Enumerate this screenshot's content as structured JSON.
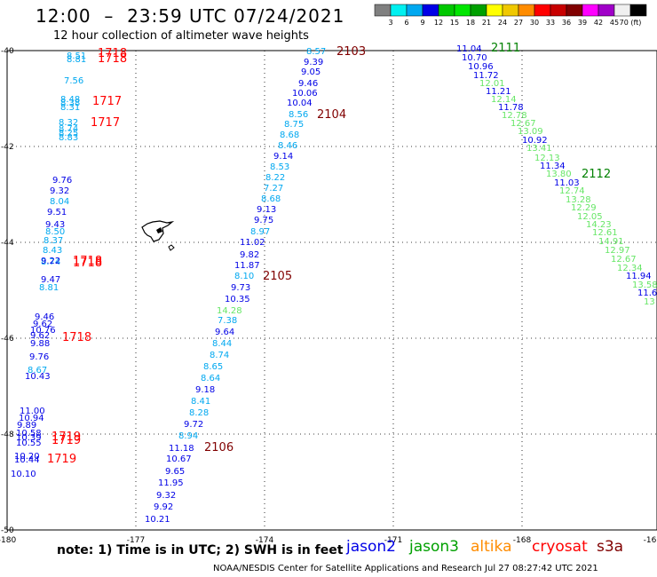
{
  "header": {
    "title": "12:00  –  23:59 UTC 07/24/2021",
    "subtitle": "12 hour collection of altimeter wave heights"
  },
  "legend": {
    "labels": [
      "3",
      "6",
      "9",
      "12",
      "15",
      "18",
      "21",
      "24",
      "27",
      "30",
      "33",
      "36",
      "39",
      "42",
      "45",
      "70 (ft)"
    ],
    "colors": [
      "#808080",
      "#00f0f0",
      "#00a8f0",
      "#0000e6",
      "#00c800",
      "#00e600",
      "#00a000",
      "#ffff00",
      "#f0c800",
      "#ff8c00",
      "#ff0000",
      "#c80000",
      "#800000",
      "#ff00ff",
      "#a000c8",
      "#f0f0f0",
      "#000000"
    ]
  },
  "axes": {
    "lon_ticks": [
      "-180",
      "-177",
      "-174",
      "-171",
      "-168",
      "-16"
    ],
    "lat_ticks": [
      "-40",
      "-42",
      "-44",
      "-46",
      "-48",
      "-50"
    ]
  },
  "observations": [
    {
      "t": "8.51",
      "c": "#00a8f0"
    },
    {
      "t": "8.81",
      "c": "#00a8f0"
    },
    {
      "t": "7.56",
      "c": "#00a8f0"
    },
    {
      "t": "8.48",
      "c": "#00a8f0"
    },
    {
      "t": "8.38",
      "c": "#00a8f0"
    },
    {
      "t": "8.31",
      "c": "#00a8f0"
    },
    {
      "t": "8.32",
      "c": "#00a8f0"
    },
    {
      "t": "8.74",
      "c": "#00a8f0"
    },
    {
      "t": "8.25",
      "c": "#00a8f0"
    },
    {
      "t": "8.83",
      "c": "#00a8f0"
    },
    {
      "t": "9.76",
      "c": "#0000e6"
    },
    {
      "t": "9.32",
      "c": "#0000e6"
    },
    {
      "t": "8.04",
      "c": "#00a8f0"
    },
    {
      "t": "9.51",
      "c": "#0000e6"
    },
    {
      "t": "9.43",
      "c": "#0000e6"
    },
    {
      "t": "8.50",
      "c": "#00a8f0"
    },
    {
      "t": "8.37",
      "c": "#00a8f0"
    },
    {
      "t": "8.43",
      "c": "#00a8f0"
    },
    {
      "t": "8.74",
      "c": "#00a8f0"
    },
    {
      "t": "9.22",
      "c": "#0000e6"
    },
    {
      "t": "9.47",
      "c": "#0000e6"
    },
    {
      "t": "8.81",
      "c": "#00a8f0"
    },
    {
      "t": "9.46",
      "c": "#0000e6"
    },
    {
      "t": "9.62",
      "c": "#0000e6"
    },
    {
      "t": "10.76",
      "c": "#0000e6"
    },
    {
      "t": "9.62",
      "c": "#0000e6"
    },
    {
      "t": "9.88",
      "c": "#0000e6"
    },
    {
      "t": "9.76",
      "c": "#0000e6"
    },
    {
      "t": "8.67",
      "c": "#00a8f0"
    },
    {
      "t": "10.43",
      "c": "#0000e6"
    },
    {
      "t": "11.00",
      "c": "#0000e6"
    },
    {
      "t": "10.94",
      "c": "#0000e6"
    },
    {
      "t": "9.89",
      "c": "#0000e6"
    },
    {
      "t": "10.58",
      "c": "#0000e6"
    },
    {
      "t": "10.39",
      "c": "#0000e6"
    },
    {
      "t": "10.55",
      "c": "#0000e6"
    },
    {
      "t": "10.20",
      "c": "#0000e6"
    },
    {
      "t": "10.44",
      "c": "#0000e6"
    },
    {
      "t": "10.10",
      "c": "#0000e6"
    },
    {
      "t": "8.57",
      "c": "#00a8f0"
    },
    {
      "t": "9.39",
      "c": "#0000e6"
    },
    {
      "t": "9.05",
      "c": "#0000e6"
    },
    {
      "t": "9.46",
      "c": "#0000e6"
    },
    {
      "t": "10.06",
      "c": "#0000e6"
    },
    {
      "t": "10.04",
      "c": "#0000e6"
    },
    {
      "t": "8.56",
      "c": "#00a8f0"
    },
    {
      "t": "8.75",
      "c": "#00a8f0"
    },
    {
      "t": "8.68",
      "c": "#00a8f0"
    },
    {
      "t": "8.46",
      "c": "#00a8f0"
    },
    {
      "t": "9.14",
      "c": "#0000e6"
    },
    {
      "t": "8.53",
      "c": "#00a8f0"
    },
    {
      "t": "8.22",
      "c": "#00a8f0"
    },
    {
      "t": "7.27",
      "c": "#00a8f0"
    },
    {
      "t": "8.68",
      "c": "#00a8f0"
    },
    {
      "t": "9.13",
      "c": "#0000e6"
    },
    {
      "t": "9.75",
      "c": "#0000e6"
    },
    {
      "t": "8.97",
      "c": "#00a8f0"
    },
    {
      "t": "11.02",
      "c": "#0000e6"
    },
    {
      "t": "9.82",
      "c": "#0000e6"
    },
    {
      "t": "11.87",
      "c": "#0000e6"
    },
    {
      "t": "8.10",
      "c": "#00a8f0"
    },
    {
      "t": "9.73",
      "c": "#0000e6"
    },
    {
      "t": "10.35",
      "c": "#0000e6"
    },
    {
      "t": "14.28",
      "c": "#66e666"
    },
    {
      "t": "7.38",
      "c": "#00a8f0"
    },
    {
      "t": "9.64",
      "c": "#0000e6"
    },
    {
      "t": "8.44",
      "c": "#00a8f0"
    },
    {
      "t": "8.74",
      "c": "#00a8f0"
    },
    {
      "t": "8.65",
      "c": "#00a8f0"
    },
    {
      "t": "8.64",
      "c": "#00a8f0"
    },
    {
      "t": "9.18",
      "c": "#0000e6"
    },
    {
      "t": "8.41",
      "c": "#00a8f0"
    },
    {
      "t": "8.28",
      "c": "#00a8f0"
    },
    {
      "t": "9.72",
      "c": "#0000e6"
    },
    {
      "t": "8.94",
      "c": "#00a8f0"
    },
    {
      "t": "11.18",
      "c": "#0000e6"
    },
    {
      "t": "10.67",
      "c": "#0000e6"
    },
    {
      "t": "9.65",
      "c": "#0000e6"
    },
    {
      "t": "11.95",
      "c": "#0000e6"
    },
    {
      "t": "9.32",
      "c": "#0000e6"
    },
    {
      "t": "9.92",
      "c": "#0000e6"
    },
    {
      "t": "10.21",
      "c": "#0000e6"
    },
    {
      "t": "11.04",
      "c": "#0000e6"
    },
    {
      "t": "10.70",
      "c": "#0000e6"
    },
    {
      "t": "10.96",
      "c": "#0000e6"
    },
    {
      "t": "11.72",
      "c": "#0000e6"
    },
    {
      "t": "12.01",
      "c": "#66e666"
    },
    {
      "t": "11.21",
      "c": "#0000e6"
    },
    {
      "t": "12.14",
      "c": "#66e666"
    },
    {
      "t": "11.78",
      "c": "#0000e6"
    },
    {
      "t": "12.78",
      "c": "#66e666"
    },
    {
      "t": "12.67",
      "c": "#66e666"
    },
    {
      "t": "13.09",
      "c": "#66e666"
    },
    {
      "t": "10.92",
      "c": "#0000e6"
    },
    {
      "t": "13.41",
      "c": "#66e666"
    },
    {
      "t": "12.13",
      "c": "#66e666"
    },
    {
      "t": "11.34",
      "c": "#0000e6"
    },
    {
      "t": "13.80",
      "c": "#66e666"
    },
    {
      "t": "11.03",
      "c": "#0000e6"
    },
    {
      "t": "12.74",
      "c": "#66e666"
    },
    {
      "t": "13.28",
      "c": "#66e666"
    },
    {
      "t": "12.29",
      "c": "#66e666"
    },
    {
      "t": "12.05",
      "c": "#66e666"
    },
    {
      "t": "14.23",
      "c": "#66e666"
    },
    {
      "t": "12.61",
      "c": "#66e666"
    },
    {
      "t": "14.91",
      "c": "#66e666"
    },
    {
      "t": "12.97",
      "c": "#66e666"
    },
    {
      "t": "12.67",
      "c": "#66e666"
    },
    {
      "t": "12.34",
      "c": "#66e666"
    },
    {
      "t": "11.94",
      "c": "#0000e6"
    },
    {
      "t": "13.58",
      "c": "#66e666"
    },
    {
      "t": "11.6",
      "c": "#0000e6"
    },
    {
      "t": "13",
      "c": "#66e666"
    }
  ],
  "time_labels": [
    {
      "t": "1718",
      "c": "#ff0000"
    },
    {
      "t": "1718",
      "c": "#ff0000"
    },
    {
      "t": "1717",
      "c": "#ff0000"
    },
    {
      "t": "1717",
      "c": "#ff0000"
    },
    {
      "t": "1718",
      "c": "#ff0000"
    },
    {
      "t": "1718",
      "c": "#ff0000"
    },
    {
      "t": "1718",
      "c": "#ff0000"
    },
    {
      "t": "1719",
      "c": "#ff0000"
    },
    {
      "t": "1719",
      "c": "#ff0000"
    },
    {
      "t": "1719",
      "c": "#ff0000"
    },
    {
      "t": "2103",
      "c": "#800000"
    },
    {
      "t": "2104",
      "c": "#800000"
    },
    {
      "t": "2105",
      "c": "#800000"
    },
    {
      "t": "2106",
      "c": "#800000"
    },
    {
      "t": "2111",
      "c": "#008000"
    },
    {
      "t": "2112",
      "c": "#008000"
    }
  ],
  "footer": {
    "note": "note:  1) Time is in UTC;  2) SWH is in feet",
    "satellites": [
      {
        "name": "jason2",
        "color": "#0000e6"
      },
      {
        "name": "jason3",
        "color": "#00a000"
      },
      {
        "name": "altika",
        "color": "#ff8c00"
      },
      {
        "name": "cryosat",
        "color": "#ff0000"
      },
      {
        "name": "s3a",
        "color": "#800000"
      }
    ],
    "credit": "NOAA/NESDIS Center for Satellite Applications and Research    Jul 27 08:27:42 UTC 2021"
  }
}
